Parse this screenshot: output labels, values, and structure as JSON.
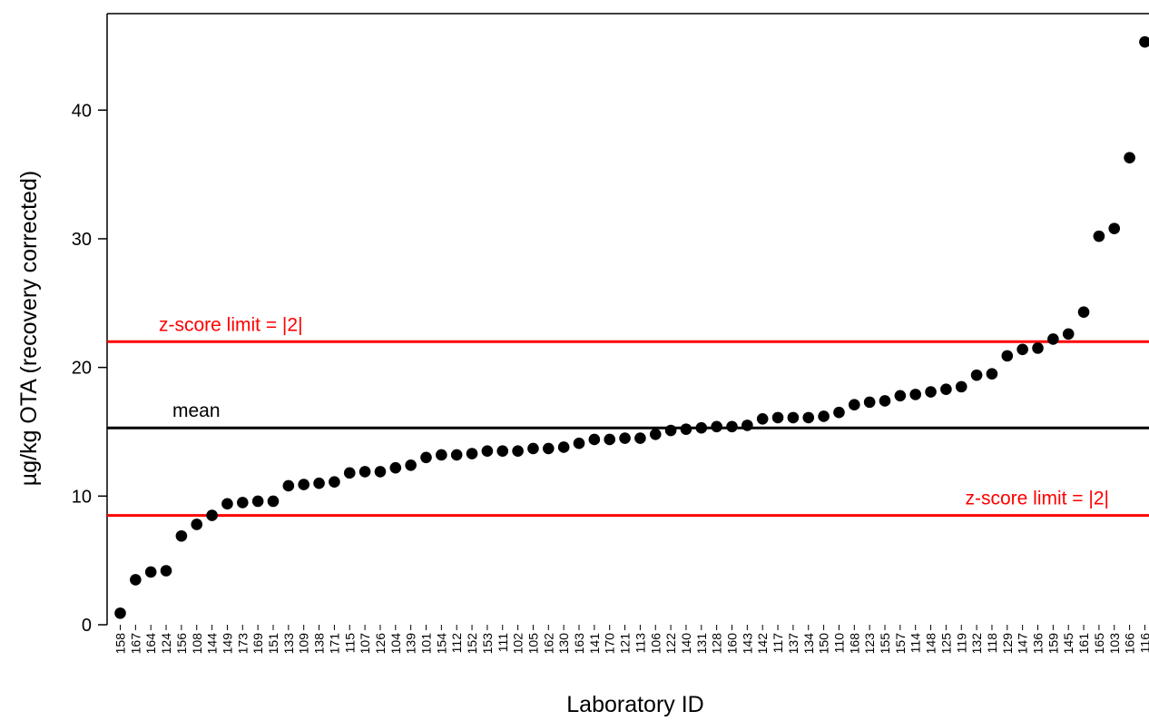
{
  "chart_data": {
    "type": "scatter",
    "title": "",
    "xlabel": "Laboratory ID",
    "ylabel": "µg/kg OTA (recovery corrected)",
    "ylim": [
      0,
      47.5
    ],
    "yticks": [
      0,
      10,
      20,
      30,
      40
    ],
    "grid": false,
    "categories": [
      "158",
      "167",
      "164",
      "124",
      "156",
      "108",
      "144",
      "149",
      "173",
      "169",
      "151",
      "133",
      "109",
      "138",
      "171",
      "115",
      "107",
      "126",
      "104",
      "139",
      "101",
      "154",
      "112",
      "152",
      "153",
      "111",
      "102",
      "105",
      "162",
      "130",
      "163",
      "141",
      "170",
      "121",
      "113",
      "106",
      "122",
      "140",
      "131",
      "128",
      "160",
      "143",
      "142",
      "117",
      "137",
      "134",
      "150",
      "110",
      "168",
      "123",
      "155",
      "157",
      "114",
      "148",
      "125",
      "119",
      "132",
      "118",
      "129",
      "147",
      "136",
      "159",
      "145",
      "161",
      "165",
      "103",
      "166",
      "116"
    ],
    "values": [
      0.9,
      3.5,
      4.1,
      4.2,
      6.9,
      7.8,
      8.5,
      9.4,
      9.5,
      9.6,
      9.6,
      10.8,
      10.9,
      11.0,
      11.1,
      11.8,
      11.9,
      11.9,
      12.2,
      12.4,
      13.0,
      13.2,
      13.2,
      13.3,
      13.5,
      13.5,
      13.5,
      13.7,
      13.7,
      13.8,
      14.1,
      14.4,
      14.4,
      14.5,
      14.5,
      14.8,
      15.1,
      15.2,
      15.3,
      15.4,
      15.4,
      15.5,
      16.0,
      16.1,
      16.1,
      16.1,
      16.2,
      16.5,
      17.1,
      17.3,
      17.4,
      17.8,
      17.9,
      18.1,
      18.3,
      18.5,
      19.4,
      19.5,
      20.9,
      21.4,
      21.5,
      22.2,
      22.6,
      24.3,
      30.2,
      30.8,
      36.3,
      45.3
    ],
    "series": [
      {
        "values_ref": "values",
        "color": "#000000"
      }
    ],
    "reference_lines": [
      {
        "label": "z-score limit = |2|",
        "y": 22.0,
        "color": "#ff0000",
        "label_pos": "upper-left"
      },
      {
        "label": "mean",
        "y": 15.3,
        "color": "#000000",
        "label_pos": "upper-left"
      },
      {
        "label": "z-score limit = |2|",
        "y": 8.5,
        "color": "#ff0000",
        "label_pos": "upper-right"
      }
    ]
  }
}
